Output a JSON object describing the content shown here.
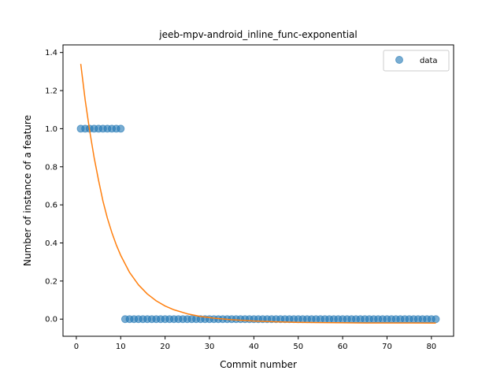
{
  "chart_data": {
    "type": "scatter",
    "title": "jeeb-mpv-android_inline_func-exponential",
    "xlabel": "Commit number",
    "ylabel": "Number of instance of a feature",
    "xlim": [
      -3,
      85
    ],
    "ylim": [
      -0.09,
      1.44
    ],
    "xticks": [
      0,
      10,
      20,
      30,
      40,
      50,
      60,
      70,
      80
    ],
    "yticks": [
      0.0,
      0.2,
      0.4,
      0.6,
      0.8,
      1.0,
      1.2,
      1.4
    ],
    "xtick_labels": [
      "0",
      "10",
      "20",
      "30",
      "40",
      "50",
      "60",
      "70",
      "80"
    ],
    "ytick_labels": [
      "0.0",
      "0.2",
      "0.4",
      "0.6",
      "0.8",
      "1.0",
      "1.2",
      "1.4"
    ],
    "grid": false,
    "legend": {
      "placement": "top-right",
      "entries": [
        "data"
      ]
    },
    "series": [
      {
        "name": "data",
        "kind": "scatter",
        "color": "#1f77b4",
        "x": [
          1,
          2,
          3,
          4,
          5,
          6,
          7,
          8,
          9,
          10,
          11,
          12,
          13,
          14,
          15,
          16,
          17,
          18,
          19,
          20,
          21,
          22,
          23,
          24,
          25,
          26,
          27,
          28,
          29,
          30,
          31,
          32,
          33,
          34,
          35,
          36,
          37,
          38,
          39,
          40,
          41,
          42,
          43,
          44,
          45,
          46,
          47,
          48,
          49,
          50,
          51,
          52,
          53,
          54,
          55,
          56,
          57,
          58,
          59,
          60,
          61,
          62,
          63,
          64,
          65,
          66,
          67,
          68,
          69,
          70,
          71,
          72,
          73,
          74,
          75,
          76,
          77,
          78,
          79,
          80,
          81
        ],
        "y": [
          1,
          1,
          1,
          1,
          1,
          1,
          1,
          1,
          1,
          1,
          0,
          0,
          0,
          0,
          0,
          0,
          0,
          0,
          0,
          0,
          0,
          0,
          0,
          0,
          0,
          0,
          0,
          0,
          0,
          0,
          0,
          0,
          0,
          0,
          0,
          0,
          0,
          0,
          0,
          0,
          0,
          0,
          0,
          0,
          0,
          0,
          0,
          0,
          0,
          0,
          0,
          0,
          0,
          0,
          0,
          0,
          0,
          0,
          0,
          0,
          0,
          0,
          0,
          0,
          0,
          0,
          0,
          0,
          0,
          0,
          0,
          0,
          0,
          0,
          0,
          0,
          0,
          0,
          0,
          0,
          0
        ]
      },
      {
        "kind": "line",
        "color": "#ff7f0e",
        "x": [
          1,
          2,
          3,
          4,
          5,
          6,
          7,
          8,
          9,
          10,
          12,
          14,
          16,
          18,
          20,
          22,
          25,
          28,
          31,
          35,
          40,
          45,
          50,
          55,
          60,
          65,
          70,
          75,
          81
        ],
        "y": [
          1.34,
          1.15,
          0.99,
          0.85,
          0.73,
          0.62,
          0.53,
          0.455,
          0.39,
          0.335,
          0.245,
          0.18,
          0.132,
          0.096,
          0.069,
          0.049,
          0.028,
          0.014,
          0.005,
          -0.003,
          -0.01,
          -0.014,
          -0.017,
          -0.018,
          -0.019,
          -0.02,
          -0.02,
          -0.02,
          -0.021
        ]
      }
    ]
  }
}
